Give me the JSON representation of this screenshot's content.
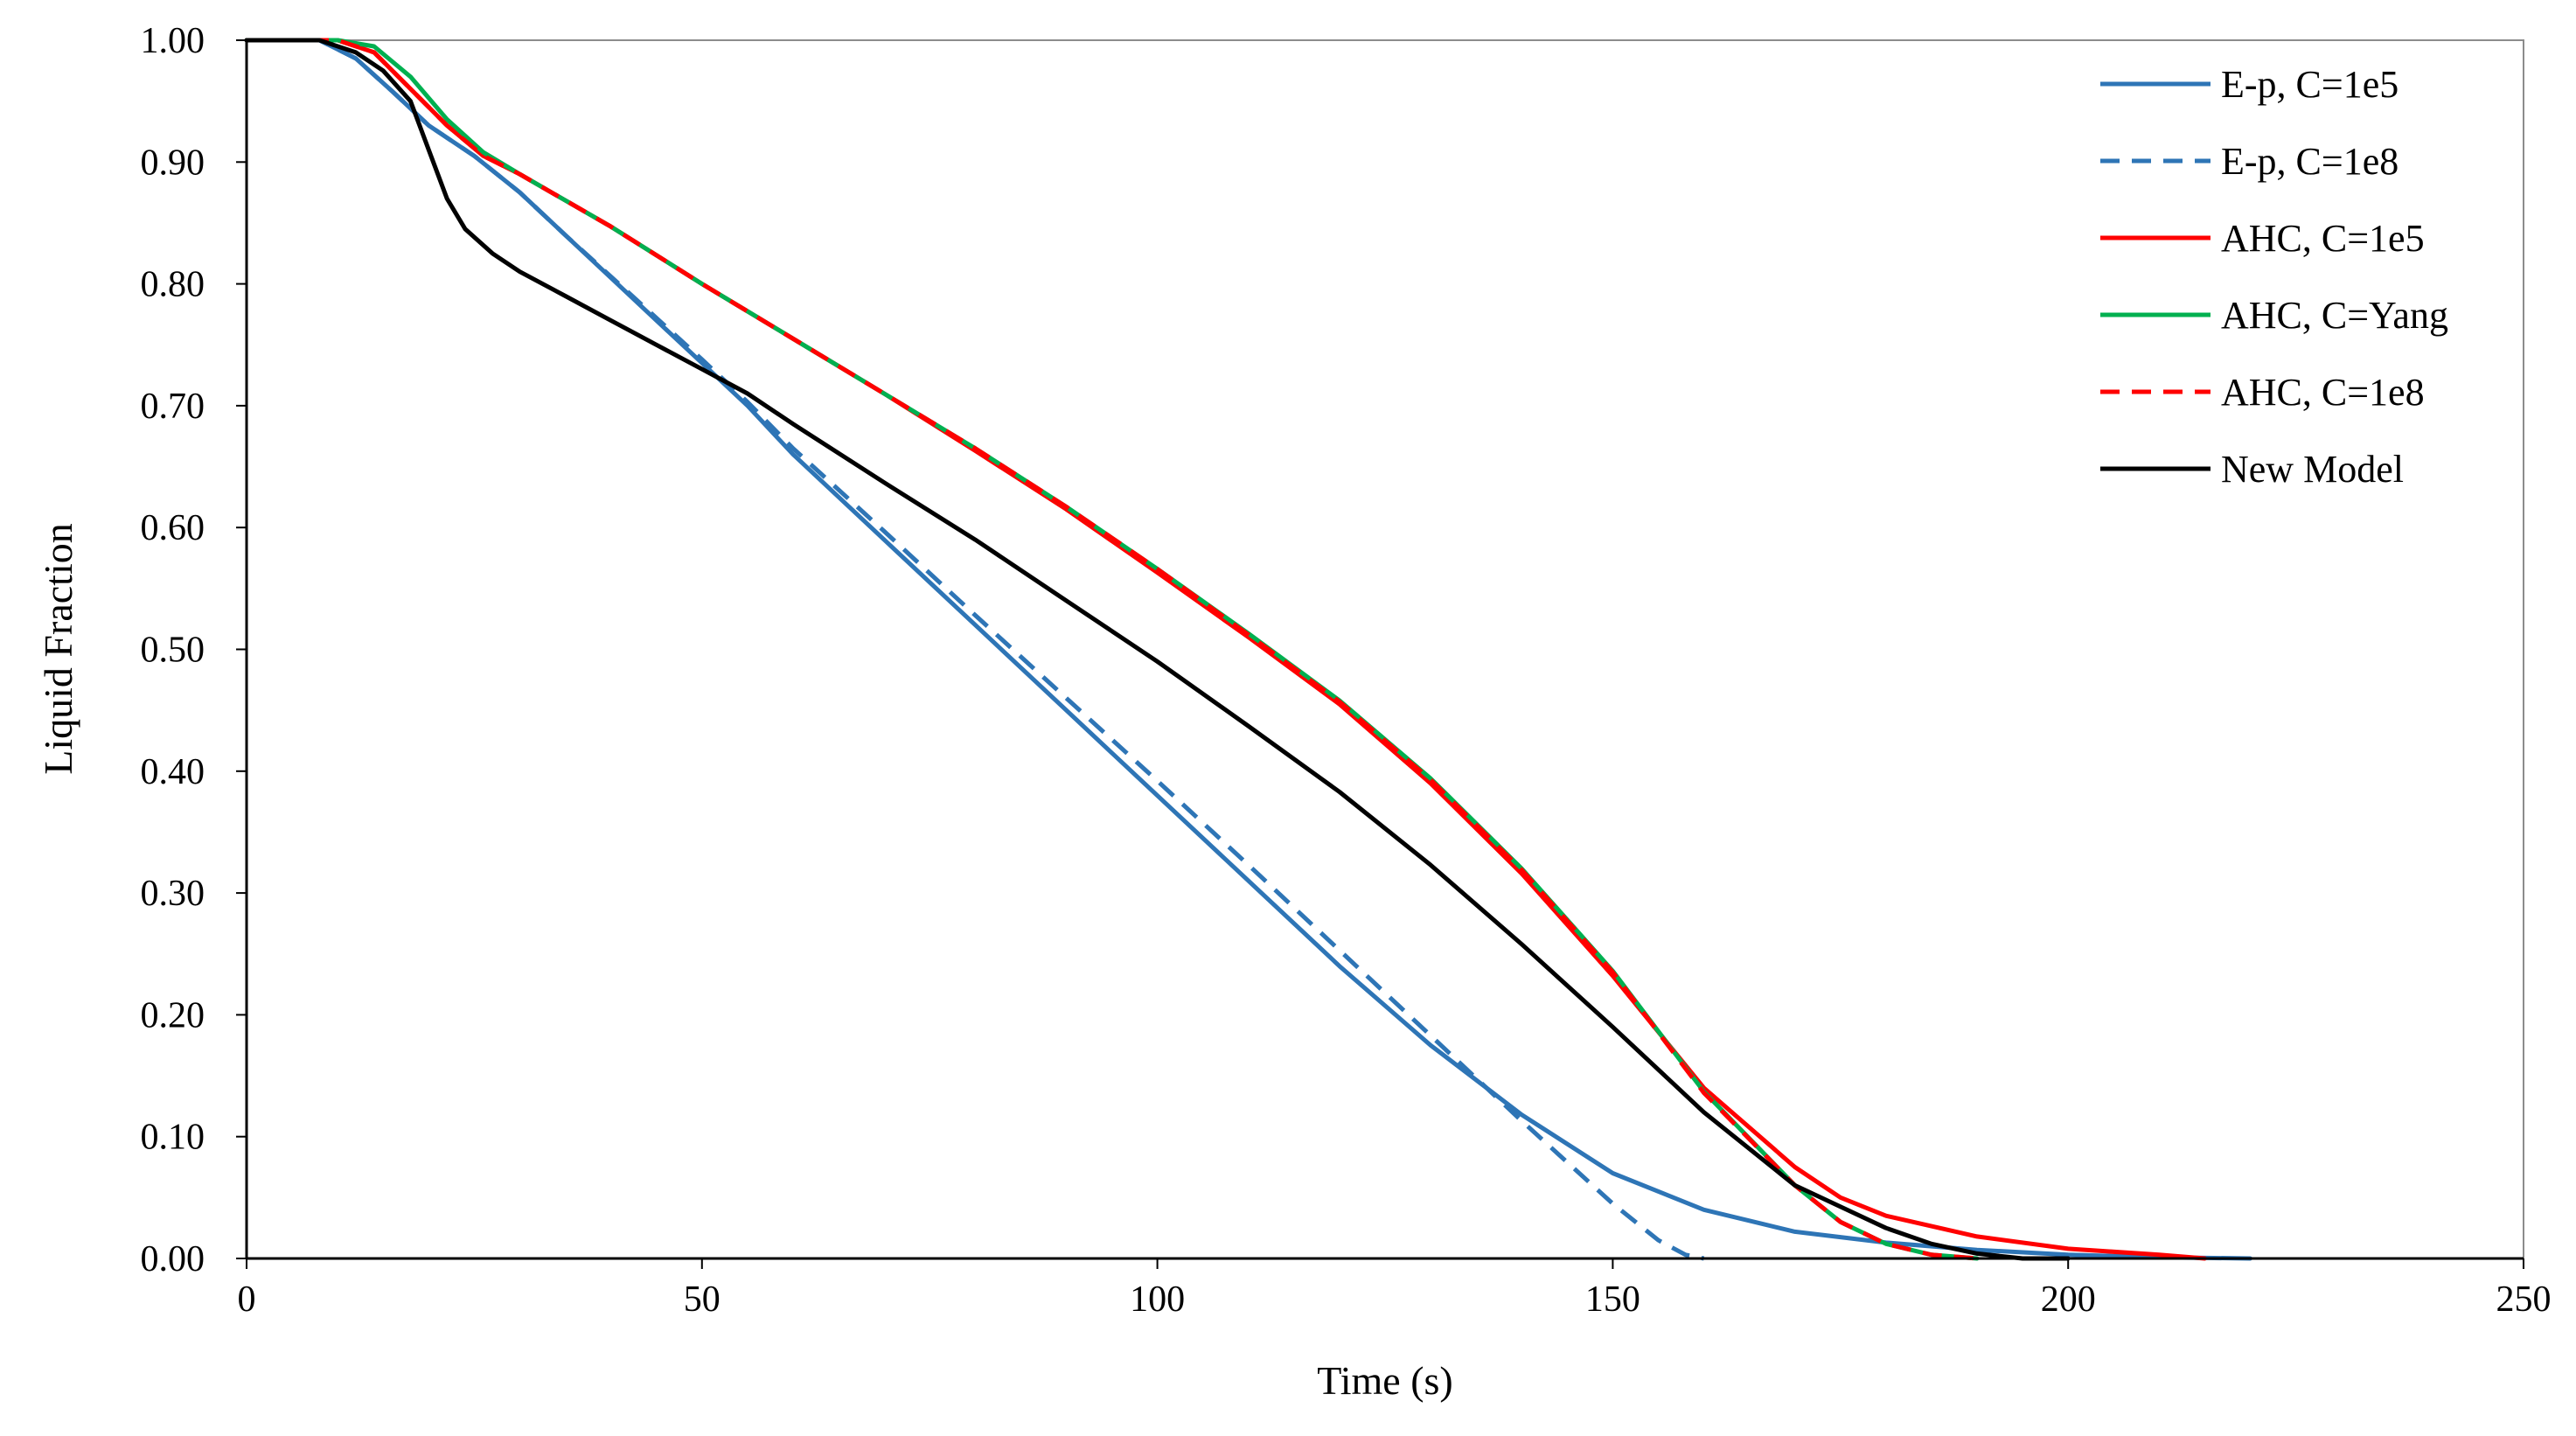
{
  "chart_data": {
    "type": "line",
    "title": "",
    "xlabel": "Time (s)",
    "ylabel": "Liquid Fraction",
    "xlim": [
      0,
      250
    ],
    "ylim": [
      0,
      1
    ],
    "x_ticks": [
      "0",
      "50",
      "100",
      "150",
      "200",
      "250"
    ],
    "y_ticks": [
      "0.00",
      "0.10",
      "0.20",
      "0.30",
      "0.40",
      "0.50",
      "0.60",
      "0.70",
      "0.80",
      "0.90",
      "1.00"
    ],
    "grid": false,
    "legend_position": "top-right",
    "series": [
      {
        "name": "E-p, C=1e5",
        "color": "#2E75B6",
        "dash": "solid",
        "points": [
          [
            0,
            1.0
          ],
          [
            8,
            1.0
          ],
          [
            12,
            0.985
          ],
          [
            16,
            0.958
          ],
          [
            20,
            0.93
          ],
          [
            25,
            0.905
          ],
          [
            30,
            0.875
          ],
          [
            35,
            0.84
          ],
          [
            40,
            0.805
          ],
          [
            45,
            0.77
          ],
          [
            50,
            0.735
          ],
          [
            55,
            0.7
          ],
          [
            60,
            0.66
          ],
          [
            70,
            0.59
          ],
          [
            80,
            0.52
          ],
          [
            90,
            0.45
          ],
          [
            100,
            0.38
          ],
          [
            110,
            0.31
          ],
          [
            120,
            0.24
          ],
          [
            130,
            0.175
          ],
          [
            140,
            0.118
          ],
          [
            150,
            0.07
          ],
          [
            160,
            0.04
          ],
          [
            170,
            0.022
          ],
          [
            180,
            0.013
          ],
          [
            190,
            0.007
          ],
          [
            200,
            0.003
          ],
          [
            210,
            0.001
          ],
          [
            220,
            0.0
          ]
        ]
      },
      {
        "name": "E-p, C=1e8",
        "color": "#2E75B6",
        "dash": "dashed",
        "points": [
          [
            0,
            1.0
          ],
          [
            8,
            1.0
          ],
          [
            12,
            0.985
          ],
          [
            16,
            0.958
          ],
          [
            20,
            0.93
          ],
          [
            25,
            0.905
          ],
          [
            30,
            0.875
          ],
          [
            35,
            0.84
          ],
          [
            40,
            0.806
          ],
          [
            45,
            0.772
          ],
          [
            50,
            0.738
          ],
          [
            55,
            0.703
          ],
          [
            60,
            0.665
          ],
          [
            70,
            0.597
          ],
          [
            80,
            0.528
          ],
          [
            90,
            0.46
          ],
          [
            100,
            0.392
          ],
          [
            110,
            0.323
          ],
          [
            120,
            0.253
          ],
          [
            130,
            0.183
          ],
          [
            140,
            0.113
          ],
          [
            150,
            0.045
          ],
          [
            155,
            0.015
          ],
          [
            158,
            0.003
          ],
          [
            160,
            0.0
          ]
        ]
      },
      {
        "name": "AHC, C=1e5",
        "color": "#FF0000",
        "dash": "solid",
        "points": [
          [
            0,
            1.0
          ],
          [
            10,
            1.0
          ],
          [
            14,
            0.99
          ],
          [
            18,
            0.96
          ],
          [
            22,
            0.93
          ],
          [
            26,
            0.905
          ],
          [
            30,
            0.89
          ],
          [
            40,
            0.847
          ],
          [
            50,
            0.8
          ],
          [
            60,
            0.755
          ],
          [
            70,
            0.71
          ],
          [
            80,
            0.663
          ],
          [
            90,
            0.615
          ],
          [
            100,
            0.563
          ],
          [
            110,
            0.51
          ],
          [
            120,
            0.455
          ],
          [
            130,
            0.39
          ],
          [
            140,
            0.316
          ],
          [
            150,
            0.232
          ],
          [
            160,
            0.14
          ],
          [
            170,
            0.075
          ],
          [
            175,
            0.05
          ],
          [
            180,
            0.035
          ],
          [
            190,
            0.018
          ],
          [
            200,
            0.008
          ],
          [
            210,
            0.003
          ],
          [
            215,
            0.0
          ]
        ]
      },
      {
        "name": "AHC, C=Yang",
        "color": "#00B050",
        "dash": "solid",
        "points": [
          [
            0,
            1.0
          ],
          [
            10,
            1.0
          ],
          [
            14,
            0.995
          ],
          [
            18,
            0.97
          ],
          [
            22,
            0.935
          ],
          [
            26,
            0.908
          ],
          [
            30,
            0.89
          ],
          [
            40,
            0.847
          ],
          [
            50,
            0.8
          ],
          [
            60,
            0.755
          ],
          [
            70,
            0.71
          ],
          [
            80,
            0.665
          ],
          [
            90,
            0.617
          ],
          [
            100,
            0.566
          ],
          [
            110,
            0.513
          ],
          [
            120,
            0.458
          ],
          [
            130,
            0.394
          ],
          [
            140,
            0.32
          ],
          [
            150,
            0.236
          ],
          [
            160,
            0.137
          ],
          [
            170,
            0.06
          ],
          [
            175,
            0.03
          ],
          [
            180,
            0.012
          ],
          [
            185,
            0.003
          ],
          [
            190,
            0.0
          ]
        ]
      },
      {
        "name": "AHC, C=1e8",
        "color": "#FF0000",
        "dash": "dashed",
        "points": [
          [
            0,
            1.0
          ],
          [
            10,
            1.0
          ],
          [
            14,
            0.99
          ],
          [
            18,
            0.96
          ],
          [
            22,
            0.93
          ],
          [
            26,
            0.905
          ],
          [
            30,
            0.89
          ],
          [
            40,
            0.847
          ],
          [
            50,
            0.8
          ],
          [
            60,
            0.755
          ],
          [
            70,
            0.71
          ],
          [
            80,
            0.665
          ],
          [
            90,
            0.617
          ],
          [
            100,
            0.566
          ],
          [
            110,
            0.512
          ],
          [
            120,
            0.457
          ],
          [
            130,
            0.393
          ],
          [
            140,
            0.319
          ],
          [
            150,
            0.235
          ],
          [
            160,
            0.136
          ],
          [
            170,
            0.06
          ],
          [
            175,
            0.03
          ],
          [
            180,
            0.012
          ],
          [
            185,
            0.003
          ],
          [
            190,
            0.0
          ]
        ]
      },
      {
        "name": "New Model",
        "color": "#000000",
        "dash": "solid",
        "points": [
          [
            0,
            1.0
          ],
          [
            8,
            1.0
          ],
          [
            12,
            0.99
          ],
          [
            15,
            0.975
          ],
          [
            18,
            0.95
          ],
          [
            20,
            0.91
          ],
          [
            22,
            0.87
          ],
          [
            24,
            0.845
          ],
          [
            27,
            0.825
          ],
          [
            30,
            0.81
          ],
          [
            35,
            0.79
          ],
          [
            40,
            0.77
          ],
          [
            45,
            0.75
          ],
          [
            50,
            0.73
          ],
          [
            55,
            0.71
          ],
          [
            60,
            0.685
          ],
          [
            70,
            0.637
          ],
          [
            80,
            0.59
          ],
          [
            90,
            0.54
          ],
          [
            100,
            0.49
          ],
          [
            110,
            0.437
          ],
          [
            120,
            0.383
          ],
          [
            130,
            0.323
          ],
          [
            140,
            0.258
          ],
          [
            150,
            0.19
          ],
          [
            160,
            0.12
          ],
          [
            170,
            0.06
          ],
          [
            180,
            0.025
          ],
          [
            185,
            0.012
          ],
          [
            190,
            0.004
          ],
          [
            195,
            0.0
          ],
          [
            200,
            0.0
          ]
        ]
      }
    ]
  }
}
